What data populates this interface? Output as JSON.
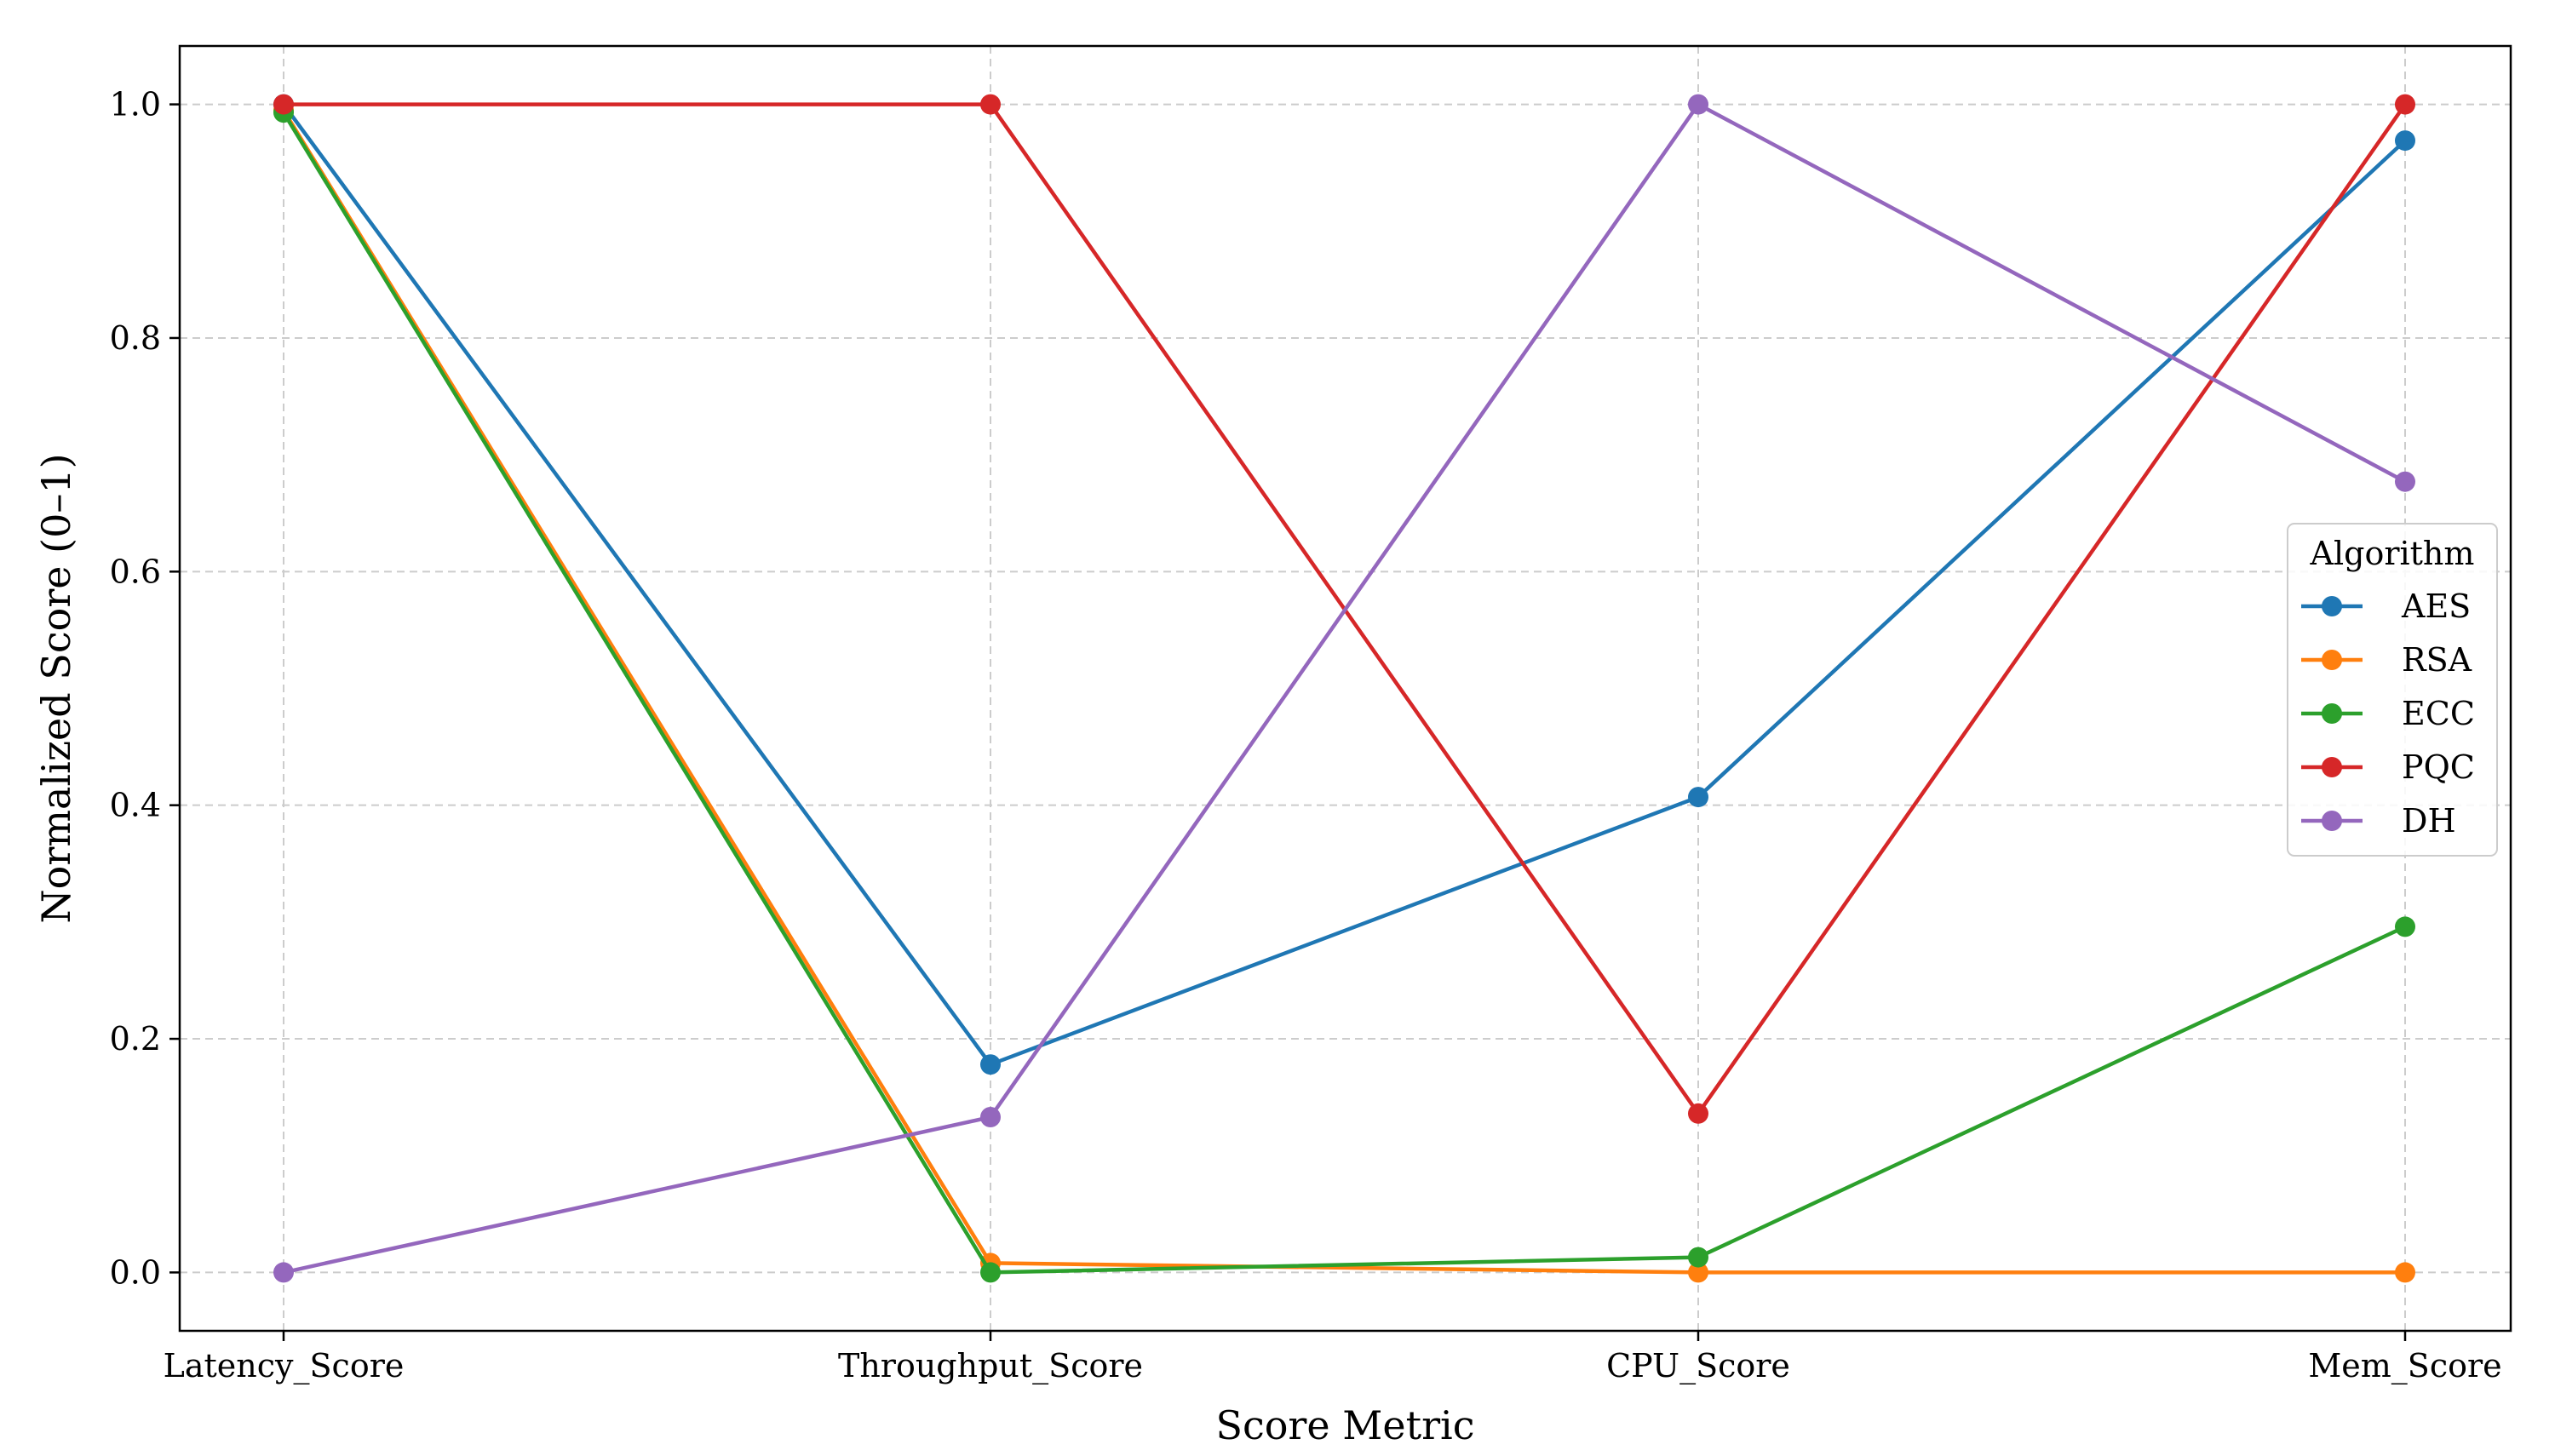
{
  "chart_data": {
    "type": "line",
    "title": "",
    "xlabel": "Score Metric",
    "ylabel": "Normalized Score (0–1)",
    "categories": [
      "Latency_Score",
      "Throughput_Score",
      "CPU_Score",
      "Mem_Score"
    ],
    "ylim": [
      -0.05,
      1.05
    ],
    "yticks": [
      "0.0",
      "0.2",
      "0.4",
      "0.6",
      "0.8",
      "1.0"
    ],
    "grid": true,
    "legend": {
      "title": "Algorithm",
      "placement": "center-right"
    },
    "series": [
      {
        "name": "AES",
        "color": "#1f77b4",
        "values": [
          1.0,
          0.178,
          0.407,
          0.969
        ]
      },
      {
        "name": "RSA",
        "color": "#ff7f0e",
        "values": [
          0.995,
          0.008,
          0.0,
          0.0
        ]
      },
      {
        "name": "ECC",
        "color": "#2ca02c",
        "values": [
          0.993,
          0.0,
          0.013,
          0.296
        ]
      },
      {
        "name": "PQC",
        "color": "#d62728",
        "values": [
          1.0,
          1.0,
          0.136,
          1.0
        ]
      },
      {
        "name": "DH",
        "color": "#9467bd",
        "values": [
          0.0,
          0.133,
          1.0,
          0.677
        ]
      }
    ]
  }
}
